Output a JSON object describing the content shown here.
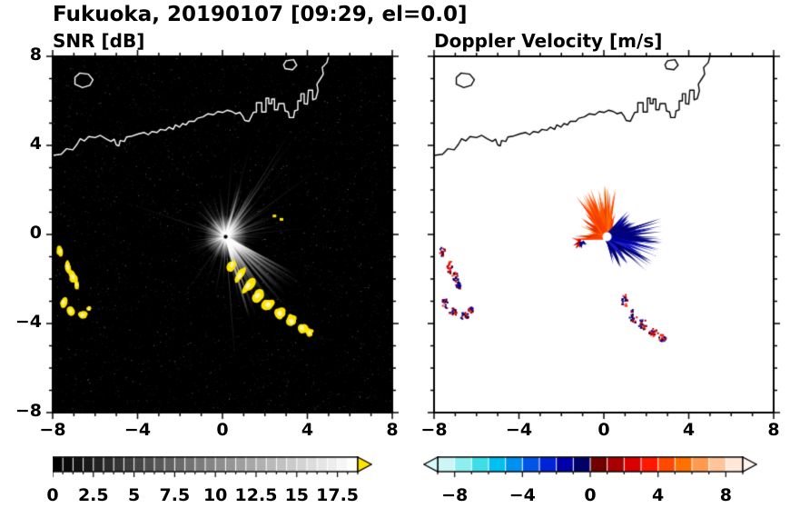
{
  "title": "Fukuoka, 20190107 [09:29, el=0.0]",
  "chart_data": {
    "type": "heatmap",
    "subtype": "doppler-radar-ppi-dual-panel",
    "axes": {
      "xlim": [
        -8,
        8
      ],
      "ylim": [
        -8,
        8
      ],
      "major_ticks": [
        -8,
        -4,
        0,
        4,
        8
      ],
      "major_tick_labels": [
        "−8",
        "−4",
        "0",
        "4",
        "8"
      ],
      "y_tick_values": [
        8,
        4,
        0,
        -4,
        -8
      ],
      "y_tick_labels": [
        "8",
        "4",
        "0",
        "−4",
        "−8"
      ],
      "minor_tick_step": 1,
      "grid": false
    },
    "radar_center": {
      "x": 0.15,
      "y": -0.1
    },
    "seed": 42,
    "panels": [
      {
        "title": "SNR [dB]",
        "background": "#000000",
        "colorbar": {
          "min": 0,
          "max": 18.75,
          "segments": 30,
          "scale": "grayscale",
          "ticks": [
            0,
            2.5,
            5,
            7.5,
            10,
            12.5,
            15,
            17.5
          ],
          "tick_labels": [
            "0",
            "2.5",
            "5",
            "7.5",
            "10",
            "12.5",
            "15",
            "17.5"
          ],
          "over_arrow_color": "#ffe400"
        }
      },
      {
        "title": "Doppler Velocity [m/s]",
        "background": "#ffffff",
        "colorbar": {
          "min": -9,
          "max": 9,
          "colors": [
            "#ccf6f6",
            "#8ceeee",
            "#3fdde8",
            "#00c0f0",
            "#0090f0",
            "#0055e8",
            "#0022d8",
            "#0000a8",
            "#000068",
            "#700000",
            "#a80000",
            "#d80000",
            "#ff1800",
            "#ff4800",
            "#ff7000",
            "#ff9a50",
            "#ffc49a",
            "#ffe8d8"
          ],
          "ticks": [
            -8,
            -4,
            0,
            4,
            8
          ],
          "tick_labels": [
            "−8",
            "−4",
            "0",
            "4",
            "8"
          ],
          "under_arrow_color": "#d8fbfb",
          "over_arrow_color": "#fff6ee"
        }
      }
    ],
    "coastline": {
      "main": [
        [
          -8,
          3.55
        ],
        [
          -7.6,
          3.6
        ],
        [
          -7.35,
          3.85
        ],
        [
          -7.05,
          3.8
        ],
        [
          -6.85,
          4.05
        ],
        [
          -6.7,
          4.3
        ],
        [
          -6.5,
          4.2
        ],
        [
          -6.3,
          4.4
        ],
        [
          -6,
          4.35
        ],
        [
          -5.75,
          4.45
        ],
        [
          -5.5,
          4.3
        ],
        [
          -5.25,
          4.18
        ],
        [
          -5.1,
          4.28
        ],
        [
          -5,
          4.02
        ],
        [
          -4.88,
          3.98
        ],
        [
          -4.82,
          4.22
        ],
        [
          -4.62,
          4.18
        ],
        [
          -4.52,
          4.38
        ],
        [
          -4.25,
          4.42
        ],
        [
          -3.95,
          4.52
        ],
        [
          -3.68,
          4.58
        ],
        [
          -3.5,
          4.48
        ],
        [
          -3.32,
          4.62
        ],
        [
          -3.08,
          4.58
        ],
        [
          -2.92,
          4.72
        ],
        [
          -2.68,
          4.68
        ],
        [
          -2.52,
          4.82
        ],
        [
          -2.32,
          4.72
        ],
        [
          -2.22,
          4.92
        ],
        [
          -2.02,
          4.82
        ],
        [
          -1.88,
          4.98
        ],
        [
          -1.72,
          4.92
        ],
        [
          -1.58,
          5.08
        ],
        [
          -1.32,
          5.08
        ],
        [
          -1.18,
          5.22
        ],
        [
          -0.92,
          5.28
        ],
        [
          -0.68,
          5.42
        ],
        [
          -0.42,
          5.38
        ],
        [
          -0.22,
          5.52
        ],
        [
          0.02,
          5.48
        ],
        [
          0.22,
          5.58
        ],
        [
          0.45,
          5.52
        ],
        [
          0.62,
          5.42
        ],
        [
          0.82,
          5.48
        ],
        [
          0.95,
          5.32
        ],
        [
          1.05,
          5.12
        ],
        [
          1.25,
          5.08
        ],
        [
          1.35,
          5.28
        ],
        [
          1.45,
          5.48
        ],
        [
          1.6,
          5.5
        ],
        [
          1.6,
          5.92
        ],
        [
          1.85,
          5.92
        ],
        [
          1.85,
          5.5
        ],
        [
          2.05,
          5.5
        ],
        [
          2.05,
          6.12
        ],
        [
          2.18,
          6.12
        ],
        [
          2.18,
          5.88
        ],
        [
          2.32,
          5.88
        ],
        [
          2.32,
          6.08
        ],
        [
          2.45,
          6.08
        ],
        [
          2.45,
          5.6
        ],
        [
          2.6,
          5.6
        ],
        [
          2.65,
          5.88
        ],
        [
          2.9,
          5.88
        ],
        [
          2.95,
          5.55
        ],
        [
          3.1,
          5.5
        ],
        [
          3.15,
          5.25
        ],
        [
          3.35,
          5.25
        ],
        [
          3.4,
          5.55
        ],
        [
          3.55,
          5.6
        ],
        [
          3.55,
          6
        ],
        [
          3.7,
          6
        ],
        [
          3.7,
          6.32
        ],
        [
          3.85,
          6.32
        ],
        [
          3.85,
          5.88
        ],
        [
          4,
          5.85
        ],
        [
          4.05,
          6.48
        ],
        [
          4.25,
          6.48
        ],
        [
          4.25,
          6.05
        ],
        [
          4.4,
          6.1
        ],
        [
          4.5,
          6.45
        ],
        [
          4.45,
          6.75
        ],
        [
          4.62,
          7
        ],
        [
          4.75,
          7.2
        ],
        [
          4.7,
          7.5
        ],
        [
          4.92,
          7.72
        ],
        [
          5.02,
          8.1
        ]
      ],
      "islands": [
        [
          [
            -6.95,
            6.75
          ],
          [
            -6.6,
            6.6
          ],
          [
            -6.25,
            6.7
          ],
          [
            -6.1,
            6.95
          ],
          [
            -6.32,
            7.2
          ],
          [
            -6.72,
            7.25
          ],
          [
            -6.95,
            7.05
          ]
        ],
        [
          [
            2.95,
            7.45
          ],
          [
            3.3,
            7.4
          ],
          [
            3.5,
            7.6
          ],
          [
            3.35,
            7.85
          ],
          [
            3.0,
            7.8
          ],
          [
            2.88,
            7.62
          ]
        ]
      ]
    },
    "snr_features": {
      "noise_density": 3000,
      "ray_groups": [
        {
          "a0": 0,
          "a1": 360,
          "n": 170,
          "len": [
            0.4,
            2.2
          ],
          "alpha": [
            0.08,
            0.38
          ],
          "w": [
            0.6,
            1.5
          ]
        },
        {
          "a0": -78,
          "a1": -28,
          "n": 80,
          "len": [
            1.0,
            4.3
          ],
          "alpha": [
            0.2,
            0.6
          ],
          "w": [
            0.8,
            2.2
          ]
        },
        {
          "a0": 12,
          "a1": 78,
          "n": 55,
          "len": [
            0.8,
            3.0
          ],
          "alpha": [
            0.15,
            0.5
          ],
          "w": [
            0.7,
            1.8
          ]
        },
        {
          "a0": 95,
          "a1": 150,
          "n": 30,
          "len": [
            0.6,
            2.4
          ],
          "alpha": [
            0.12,
            0.42
          ],
          "w": [
            0.7,
            1.6
          ]
        },
        {
          "a0": 0,
          "a1": 360,
          "n": 16,
          "len": [
            2.8,
            6.4
          ],
          "alpha": [
            0.18,
            0.45
          ],
          "w": [
            0.5,
            1.0
          ]
        },
        {
          "a0": 0,
          "a1": 360,
          "n": 24,
          "len": [
            0.3,
            1.0
          ],
          "alpha": [
            0.5,
            0.9
          ],
          "w": [
            1.0,
            1.8
          ]
        }
      ],
      "arc_blobs": [
        [
          0.45,
          -1.35,
          0.17,
          0.3,
          -20
        ],
        [
          0.8,
          -1.85,
          0.18,
          0.33,
          -30
        ],
        [
          1.2,
          -2.3,
          0.2,
          0.33,
          -35
        ],
        [
          1.65,
          -2.75,
          0.22,
          0.3,
          -45
        ],
        [
          2.15,
          -3.15,
          0.25,
          0.27,
          -50
        ],
        [
          2.7,
          -3.55,
          0.27,
          0.25,
          -55
        ],
        [
          3.25,
          -3.9,
          0.27,
          0.23,
          -60
        ],
        [
          3.75,
          -4.2,
          0.25,
          0.2,
          -62
        ],
        [
          4.1,
          -4.42,
          0.17,
          0.15,
          -65
        ]
      ],
      "left_blobs": [
        [
          -7.65,
          -0.75,
          0.14,
          0.2,
          0
        ],
        [
          -7.3,
          -1.45,
          0.13,
          0.3,
          10
        ],
        [
          -7.05,
          -1.9,
          0.16,
          0.24,
          20
        ],
        [
          -6.88,
          -2.25,
          0.12,
          0.16,
          0
        ],
        [
          -7.5,
          -3.05,
          0.16,
          0.26,
          -15
        ],
        [
          -7.15,
          -3.45,
          0.18,
          0.18,
          0
        ],
        [
          -6.6,
          -3.62,
          0.22,
          0.15,
          10
        ],
        [
          -6.3,
          -3.35,
          0.12,
          0.12,
          0
        ]
      ],
      "specks": [
        [
          2.45,
          0.85
        ],
        [
          2.78,
          0.7
        ]
      ],
      "blob_color": "#ffe400",
      "blob_core_color": "#fff6b8"
    },
    "velocity_features": {
      "fans": [
        {
          "cx": 0.15,
          "cy": -0.1,
          "groups": [
            {
              "a0": 62,
              "a1": 188,
              "n": 95,
              "len": [
                0.3,
                1.4
              ],
              "r0": 0.18,
              "hw": [
                1.2,
                3.0
              ],
              "colors": [
                "#ff4000",
                "#ff5a00",
                "#e63000",
                "#ff6e00",
                "#d42800",
                "#ff3c00"
              ]
            },
            {
              "a0": 78,
              "a1": 128,
              "n": 60,
              "len": [
                0.9,
                2.3
              ],
              "r0": 0.18,
              "hw": [
                1.0,
                2.6
              ],
              "colors": [
                "#ff5500",
                "#ff7000",
                "#ff3c00",
                "#e64000"
              ]
            },
            {
              "a0": -78,
              "a1": 55,
              "n": 115,
              "len": [
                0.3,
                1.5
              ],
              "r0": 0.18,
              "hw": [
                1.2,
                3.0
              ],
              "colors": [
                "#000080",
                "#0000a8",
                "#000066",
                "#1a1ac0",
                "#000090"
              ]
            },
            {
              "a0": -42,
              "a1": 22,
              "n": 70,
              "len": [
                0.9,
                2.55
              ],
              "r0": 0.18,
              "hw": [
                1.0,
                2.6
              ],
              "colors": [
                "#000080",
                "#0000a0",
                "#000060",
                "#2222cc"
              ]
            }
          ]
        },
        {
          "cx": -1.05,
          "cy": -0.3,
          "groups": [
            {
              "a0": 120,
              "a1": 250,
              "n": 9,
              "len": [
                0.12,
                0.5
              ],
              "r0": 0.05,
              "hw": [
                1.2,
                2.4
              ],
              "colors": [
                "#e00000",
                "#ff3000",
                "#b00000"
              ]
            },
            {
              "a0": 250,
              "a1": 330,
              "n": 7,
              "len": [
                0.12,
                0.45
              ],
              "r0": 0.05,
              "hw": [
                1.2,
                2.2
              ],
              "colors": [
                "#000080",
                "#0000a0"
              ]
            }
          ]
        }
      ],
      "bottom_blobs": [
        [
          0.95,
          -2.95,
          0.16,
          0.28
        ],
        [
          1.35,
          -3.65,
          0.18,
          0.32
        ],
        [
          1.8,
          -4.0,
          0.2,
          0.24
        ],
        [
          2.3,
          -4.35,
          0.22,
          0.2
        ],
        [
          2.72,
          -4.62,
          0.18,
          0.16
        ]
      ],
      "red_speckle": [
        "#d00000",
        "#ff2000",
        "#900000"
      ],
      "blue_speckle": [
        "#000080",
        "#0000b0",
        "#000050"
      ]
    }
  }
}
